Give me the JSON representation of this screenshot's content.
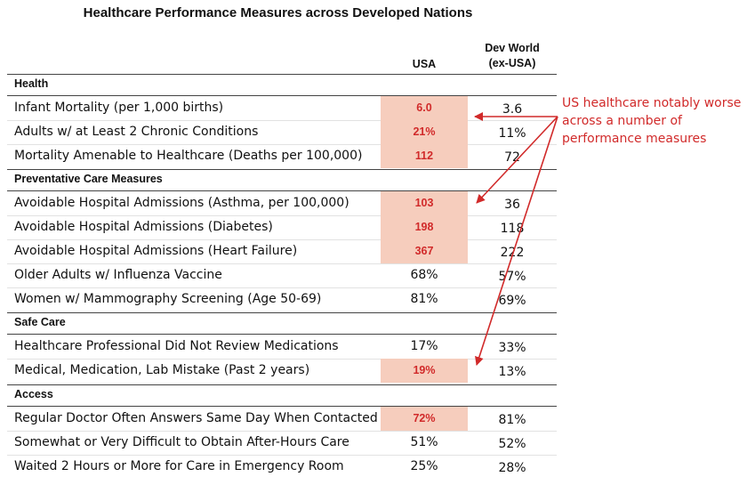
{
  "title": "Healthcare Performance Measures across Developed Nations",
  "columns": {
    "usa": "USA",
    "dev_line1": "Dev World",
    "dev_line2": "(ex-USA)"
  },
  "sections": [
    {
      "name": "Health",
      "rows": [
        {
          "label": "Infant Mortality (per 1,000 births)",
          "usa": "6.0",
          "dev": "3.6",
          "highlight": true
        },
        {
          "label": "Adults w/ at Least 2 Chronic Conditions",
          "usa": "21%",
          "dev": "11%",
          "highlight": true
        },
        {
          "label": "Mortality Amenable to Healthcare (Deaths per 100,000)",
          "usa": "112",
          "dev": "72",
          "highlight": true
        }
      ]
    },
    {
      "name": "Preventative Care Measures",
      "rows": [
        {
          "label": "Avoidable Hospital Admissions (Asthma, per 100,000)",
          "usa": "103",
          "dev": "36",
          "highlight": true
        },
        {
          "label": "Avoidable Hospital Admissions (Diabetes)",
          "usa": "198",
          "dev": "118",
          "highlight": true
        },
        {
          "label": "Avoidable Hospital Admissions (Heart Failure)",
          "usa": "367",
          "dev": "222",
          "highlight": true
        },
        {
          "label": "Older Adults w/ Influenza Vaccine",
          "usa": "68%",
          "dev": "57%",
          "highlight": false
        },
        {
          "label": "Women w/ Mammography Screening (Age 50-69)",
          "usa": "81%",
          "dev": "69%",
          "highlight": false
        }
      ]
    },
    {
      "name": "Safe Care",
      "rows": [
        {
          "label": "Healthcare Professional Did Not Review Medications",
          "usa": "17%",
          "dev": "33%",
          "highlight": false
        },
        {
          "label": "Medical, Medication, Lab Mistake (Past 2 years)",
          "usa": "19%",
          "dev": "13%",
          "highlight": true
        }
      ]
    },
    {
      "name": "Access",
      "rows": [
        {
          "label": "Regular Doctor Often Answers Same Day When Contacted",
          "usa": "72%",
          "dev": "81%",
          "highlight": true
        },
        {
          "label": "Somewhat or Very Difficult to Obtain After-Hours Care",
          "usa": "51%",
          "dev": "52%",
          "highlight": false
        },
        {
          "label": "Waited 2 Hours or More for Care in Emergency Room",
          "usa": "25%",
          "dev": "28%",
          "highlight": false
        }
      ]
    }
  ],
  "annotation": {
    "line1": "US healthcare notably worse",
    "line2": "across a number of",
    "line3": "performance measures"
  },
  "colors": {
    "accent": "#d12a2a",
    "highlight_bg": "#f6cdbd"
  }
}
